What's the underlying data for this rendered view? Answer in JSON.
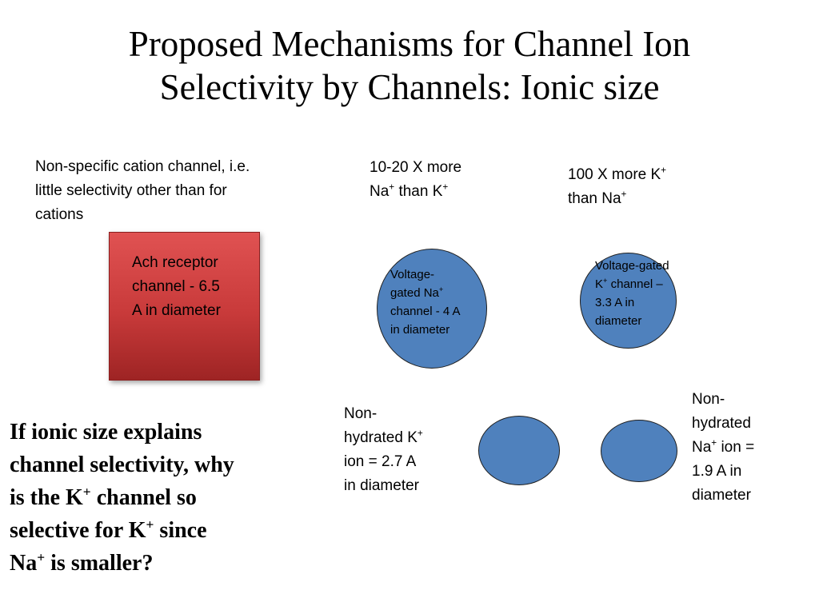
{
  "title": {
    "line1": "Proposed Mechanisms for Channel Ion",
    "line2": "Selectivity by Channels: Ionic size"
  },
  "labels": {
    "nonspecific": {
      "line1": "Non-specific cation channel, i.e.",
      "line2": "little selectivity other than for",
      "line3": "cations"
    },
    "na_selectivity": {
      "line1": "10-20 X more",
      "line2a": "Na",
      "line2b": " than K",
      "sup": "+"
    },
    "k_selectivity": {
      "line1a": "100 X more K",
      "line2": "than Na",
      "sup": "+"
    }
  },
  "ach_receptor": {
    "line1": "Ach receptor",
    "line2": "channel - 6.5",
    "line3": "A in diameter",
    "color": "#c0392b"
  },
  "na_channel": {
    "line1": "Voltage-",
    "line2": "gated Na",
    "line3": "channel - 4 A",
    "line4": "in diameter",
    "sup": "+",
    "color": "#4f81bd"
  },
  "k_channel": {
    "line1": "Voltage-gated",
    "line2a": "K",
    "line2b": " channel –",
    "line3": "3.3 A in",
    "line4": "diameter",
    "sup": "+",
    "color": "#4f81bd"
  },
  "k_ion": {
    "line1": "Non-",
    "line2": "hydrated K",
    "line3": "ion = 2.7 A",
    "line4": "in diameter",
    "sup": "+"
  },
  "na_ion": {
    "line1": "Non-",
    "line2": "hydrated",
    "line3a": "Na",
    "line3b": " ion =",
    "line4": "1.9  A in",
    "line5": "diameter",
    "sup": "+"
  },
  "question": {
    "line1": "If ionic size explains",
    "line2": "channel selectivity, why",
    "line3a": "is the K",
    "line3b": " channel so",
    "line4a": "selective for K",
    "line4b": " since",
    "line5a": "Na",
    "line5b": " is smaller?",
    "sup": "+"
  }
}
